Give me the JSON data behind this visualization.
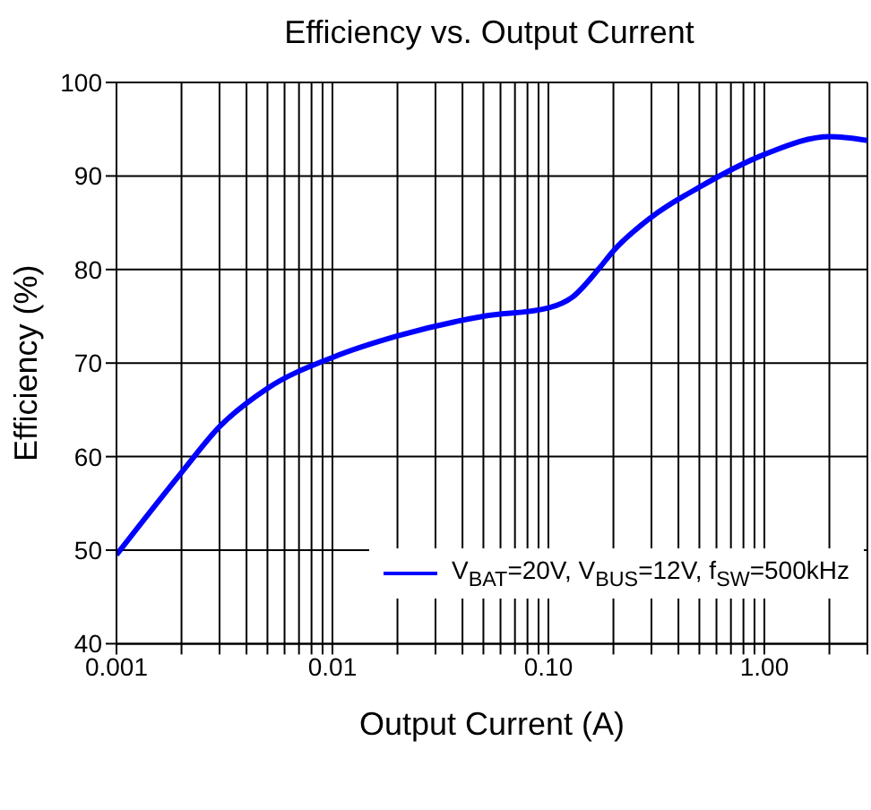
{
  "chart_data": {
    "type": "line",
    "title": "Efficiency vs. Output Current",
    "xlabel": "Output Current (A)",
    "ylabel": "Efficiency (%)",
    "log": "x",
    "grid": true,
    "legend": "bottom right",
    "marker": "none",
    "line_style": "solid",
    "xlim": [
      0.001,
      3
    ],
    "xticks": [
      {
        "value": 0.001,
        "label": "0.001"
      },
      {
        "value": 0.002,
        "label": null
      },
      {
        "value": 0.003,
        "label": null
      },
      {
        "value": 0.004,
        "label": null
      },
      {
        "value": 0.005,
        "label": null
      },
      {
        "value": 0.006,
        "label": null
      },
      {
        "value": 0.007,
        "label": null
      },
      {
        "value": 0.008,
        "label": null
      },
      {
        "value": 0.009,
        "label": null
      },
      {
        "value": 0.01,
        "label": "0.01"
      },
      {
        "value": 0.02,
        "label": null
      },
      {
        "value": 0.03,
        "label": null
      },
      {
        "value": 0.04,
        "label": null
      },
      {
        "value": 0.05,
        "label": null
      },
      {
        "value": 0.06,
        "label": null
      },
      {
        "value": 0.07,
        "label": null
      },
      {
        "value": 0.08,
        "label": null
      },
      {
        "value": 0.09,
        "label": null
      },
      {
        "value": 0.1,
        "label": "0.10"
      },
      {
        "value": 0.2,
        "label": null
      },
      {
        "value": 0.3,
        "label": null
      },
      {
        "value": 0.4,
        "label": null
      },
      {
        "value": 0.5,
        "label": null
      },
      {
        "value": 0.6,
        "label": null
      },
      {
        "value": 0.7,
        "label": null
      },
      {
        "value": 0.8,
        "label": null
      },
      {
        "value": 0.9,
        "label": null
      },
      {
        "value": 1,
        "label": "1.00"
      },
      {
        "value": 2,
        "label": null
      },
      {
        "value": 3,
        "label": null
      }
    ],
    "ylim": [
      40,
      100
    ],
    "yticks": [
      40,
      50,
      60,
      70,
      80,
      90,
      100
    ],
    "series": [
      {
        "name": "V$_{BAT}$=20V, V$_{BUS}$=12V, f$_{SW}$=500kHz",
        "color": "#0000ff",
        "x": [
          0.001,
          0.002,
          0.003,
          0.005,
          0.01,
          0.02,
          0.05,
          0.1,
          0.13,
          0.17,
          0.2,
          0.3,
          0.5,
          1,
          2,
          3
        ],
        "values": [
          49.5,
          58.3,
          63.2,
          67.3,
          70.6,
          72.9,
          75,
          75.9,
          77.1,
          80,
          82,
          85.6,
          88.8,
          92.3,
          94.2,
          93.8
        ]
      }
    ]
  }
}
